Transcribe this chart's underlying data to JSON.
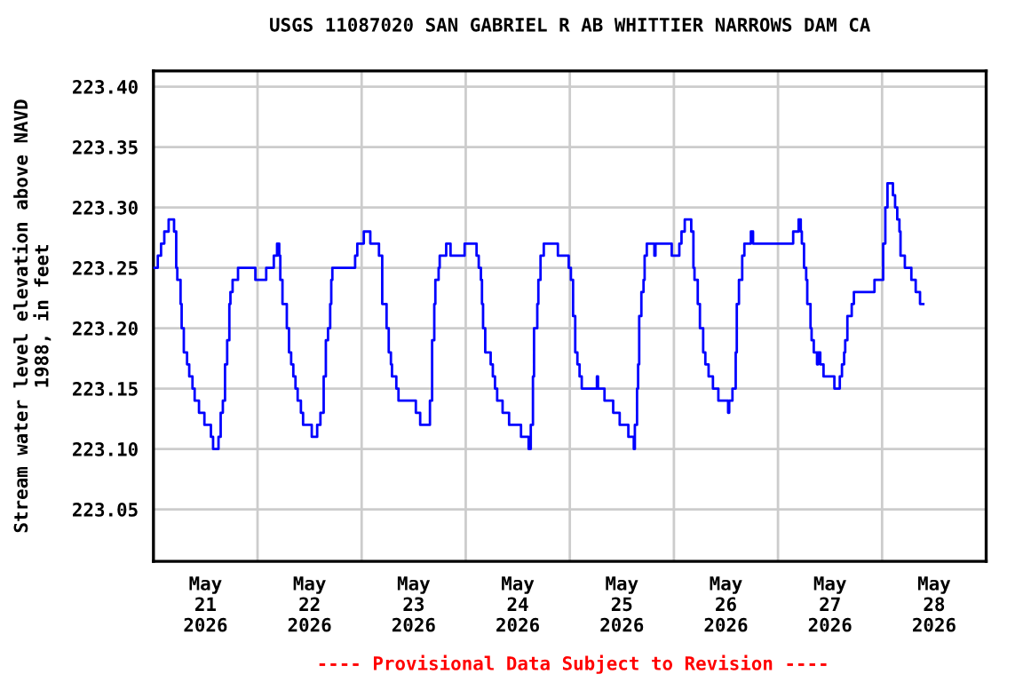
{
  "chart_data": {
    "type": "step",
    "title": "USGS 11087020 SAN GABRIEL R AB WHITTIER NARROWS DAM CA",
    "ylabel": "Stream water level elevation above NAVD\n1988, in feet",
    "annotations": [
      "---- Provisional Data Subject to Revision ----"
    ],
    "x": [
      "2026-05-21T00:00",
      "2026-05-21T01:00",
      "2026-05-21T01:45",
      "2026-05-21T02:30",
      "2026-05-21T03:30",
      "2026-05-21T04:45",
      "2026-05-21T05:15",
      "2026-05-21T05:30",
      "2026-05-21T06:15",
      "2026-05-21T06:30",
      "2026-05-21T07:00",
      "2026-05-21T07:45",
      "2026-05-21T08:15",
      "2026-05-21T09:00",
      "2026-05-21T09:30",
      "2026-05-21T10:30",
      "2026-05-21T11:45",
      "2026-05-21T13:15",
      "2026-05-21T13:45",
      "2026-05-21T15:00",
      "2026-05-21T15:30",
      "2026-05-21T16:00",
      "2026-05-21T16:30",
      "2026-05-21T17:00",
      "2026-05-21T17:30",
      "2026-05-21T17:45",
      "2026-05-21T18:15",
      "2026-05-21T19:30",
      "2026-05-21T23:30",
      "2026-05-22T02:00",
      "2026-05-22T03:45",
      "2026-05-22T04:30",
      "2026-05-22T05:00",
      "2026-05-22T05:15",
      "2026-05-22T05:45",
      "2026-05-22T06:45",
      "2026-05-22T07:15",
      "2026-05-22T07:45",
      "2026-05-22T08:15",
      "2026-05-22T08:45",
      "2026-05-22T09:15",
      "2026-05-22T10:00",
      "2026-05-22T10:30",
      "2026-05-22T12:30",
      "2026-05-22T13:45",
      "2026-05-22T14:30",
      "2026-05-22T15:15",
      "2026-05-22T15:45",
      "2026-05-22T16:15",
      "2026-05-22T16:45",
      "2026-05-22T17:00",
      "2026-05-22T17:15",
      "2026-05-22T22:30",
      "2026-05-22T23:00",
      "2026-05-23T00:30",
      "2026-05-23T02:00",
      "2026-05-23T04:00",
      "2026-05-23T04:45",
      "2026-05-23T05:45",
      "2026-05-23T06:15",
      "2026-05-23T06:45",
      "2026-05-23T07:00",
      "2026-05-23T08:00",
      "2026-05-23T08:30",
      "2026-05-23T12:30",
      "2026-05-23T13:30",
      "2026-05-23T15:45",
      "2026-05-23T16:15",
      "2026-05-23T16:45",
      "2026-05-23T17:00",
      "2026-05-23T17:45",
      "2026-05-23T18:00",
      "2026-05-23T19:30",
      "2026-05-23T20:30",
      "2026-05-23T23:45",
      "2026-05-24T02:30",
      "2026-05-24T03:00",
      "2026-05-24T03:30",
      "2026-05-24T03:45",
      "2026-05-24T04:00",
      "2026-05-24T04:30",
      "2026-05-24T05:45",
      "2026-05-24T06:15",
      "2026-05-24T06:45",
      "2026-05-24T07:15",
      "2026-05-24T08:30",
      "2026-05-24T10:00",
      "2026-05-24T12:45",
      "2026-05-24T14:30",
      "2026-05-24T15:00",
      "2026-05-24T15:30",
      "2026-05-24T15:45",
      "2026-05-24T16:30",
      "2026-05-24T16:45",
      "2026-05-24T17:15",
      "2026-05-24T18:00",
      "2026-05-24T21:15",
      "2026-05-24T23:45",
      "2026-05-25T00:15",
      "2026-05-25T00:45",
      "2026-05-25T01:15",
      "2026-05-25T01:45",
      "2026-05-25T02:15",
      "2026-05-25T02:45",
      "2026-05-25T06:15",
      "2026-05-25T06:30",
      "2026-05-25T08:00",
      "2026-05-25T10:00",
      "2026-05-25T11:30",
      "2026-05-25T13:30",
      "2026-05-25T14:45",
      "2026-05-25T15:00",
      "2026-05-25T15:30",
      "2026-05-25T15:45",
      "2026-05-25T16:00",
      "2026-05-25T16:30",
      "2026-05-25T17:00",
      "2026-05-25T17:15",
      "2026-05-25T17:45",
      "2026-05-25T19:30",
      "2026-05-25T19:45",
      "2026-05-25T23:30",
      "2026-05-26T01:15",
      "2026-05-26T01:45",
      "2026-05-26T02:30",
      "2026-05-26T04:00",
      "2026-05-26T04:30",
      "2026-05-26T04:45",
      "2026-05-26T05:30",
      "2026-05-26T06:00",
      "2026-05-26T06:45",
      "2026-05-26T07:15",
      "2026-05-26T08:00",
      "2026-05-26T09:00",
      "2026-05-26T10:15",
      "2026-05-26T12:30",
      "2026-05-26T12:45",
      "2026-05-26T13:30",
      "2026-05-26T14:15",
      "2026-05-26T14:30",
      "2026-05-26T15:00",
      "2026-05-26T15:45",
      "2026-05-26T16:15",
      "2026-05-26T17:45",
      "2026-05-26T18:15",
      "2026-05-27T03:30",
      "2026-05-27T04:45",
      "2026-05-27T05:15",
      "2026-05-27T05:30",
      "2026-05-27T06:00",
      "2026-05-27T06:30",
      "2026-05-27T06:45",
      "2026-05-27T07:30",
      "2026-05-27T07:45",
      "2026-05-27T08:15",
      "2026-05-27T09:00",
      "2026-05-27T09:15",
      "2026-05-27T09:45",
      "2026-05-27T10:30",
      "2026-05-27T13:00",
      "2026-05-27T14:15",
      "2026-05-27T14:45",
      "2026-05-27T15:15",
      "2026-05-27T15:30",
      "2026-05-27T16:00",
      "2026-05-27T17:00",
      "2026-05-27T17:30",
      "2026-05-27T22:15",
      "2026-05-28T00:15",
      "2026-05-28T00:45",
      "2026-05-28T01:15",
      "2026-05-28T02:30",
      "2026-05-28T03:00",
      "2026-05-28T03:30",
      "2026-05-28T04:00",
      "2026-05-28T04:15",
      "2026-05-28T05:15",
      "2026-05-28T06:45",
      "2026-05-28T07:45",
      "2026-05-28T08:45",
      "2026-05-28T09:30"
    ],
    "series": [
      {
        "color": "#0000ff",
        "values": [
          223.25,
          223.26,
          223.27,
          223.28,
          223.29,
          223.28,
          223.25,
          223.24,
          223.22,
          223.2,
          223.18,
          223.17,
          223.16,
          223.15,
          223.14,
          223.13,
          223.12,
          223.11,
          223.1,
          223.11,
          223.13,
          223.14,
          223.17,
          223.19,
          223.22,
          223.23,
          223.24,
          223.25,
          223.24,
          223.25,
          223.26,
          223.27,
          223.26,
          223.24,
          223.22,
          223.2,
          223.18,
          223.17,
          223.16,
          223.15,
          223.14,
          223.13,
          223.12,
          223.11,
          223.12,
          223.13,
          223.16,
          223.19,
          223.2,
          223.22,
          223.24,
          223.25,
          223.26,
          223.27,
          223.28,
          223.27,
          223.26,
          223.22,
          223.2,
          223.18,
          223.17,
          223.16,
          223.15,
          223.14,
          223.13,
          223.12,
          223.14,
          223.19,
          223.22,
          223.24,
          223.25,
          223.26,
          223.27,
          223.26,
          223.27,
          223.26,
          223.25,
          223.24,
          223.22,
          223.2,
          223.18,
          223.17,
          223.16,
          223.15,
          223.14,
          223.13,
          223.12,
          223.11,
          223.1,
          223.12,
          223.16,
          223.2,
          223.22,
          223.24,
          223.26,
          223.27,
          223.26,
          223.25,
          223.24,
          223.21,
          223.18,
          223.17,
          223.16,
          223.15,
          223.16,
          223.15,
          223.14,
          223.13,
          223.12,
          223.11,
          223.1,
          223.12,
          223.15,
          223.17,
          223.21,
          223.23,
          223.24,
          223.26,
          223.27,
          223.26,
          223.27,
          223.26,
          223.27,
          223.28,
          223.29,
          223.28,
          223.25,
          223.24,
          223.22,
          223.2,
          223.18,
          223.17,
          223.16,
          223.15,
          223.14,
          223.13,
          223.14,
          223.15,
          223.18,
          223.22,
          223.24,
          223.26,
          223.27,
          223.28,
          223.27,
          223.28,
          223.29,
          223.28,
          223.27,
          223.25,
          223.24,
          223.22,
          223.2,
          223.19,
          223.18,
          223.17,
          223.18,
          223.17,
          223.16,
          223.15,
          223.16,
          223.17,
          223.18,
          223.19,
          223.21,
          223.22,
          223.23,
          223.24,
          223.27,
          223.3,
          223.32,
          223.31,
          223.3,
          223.29,
          223.28,
          223.26,
          223.25,
          223.24,
          223.23,
          223.22,
          223.22
        ]
      }
    ],
    "xlim": [
      "2026-05-21T00:00",
      "2026-05-29T00:00"
    ],
    "xticks": [
      {
        "value": "2026-05-21T12:00",
        "label": "May\n21\n2026"
      },
      {
        "value": "2026-05-22T00:00",
        "label": null
      },
      {
        "value": "2026-05-22T12:00",
        "label": "May\n22\n2026"
      },
      {
        "value": "2026-05-23T00:00",
        "label": null
      },
      {
        "value": "2026-05-23T12:00",
        "label": "May\n23\n2026"
      },
      {
        "value": "2026-05-24T00:00",
        "label": null
      },
      {
        "value": "2026-05-24T12:00",
        "label": "May\n24\n2026"
      },
      {
        "value": "2026-05-25T00:00",
        "label": null
      },
      {
        "value": "2026-05-25T12:00",
        "label": "May\n25\n2026"
      },
      {
        "value": "2026-05-26T00:00",
        "label": null
      },
      {
        "value": "2026-05-26T12:00",
        "label": "May\n26\n2026"
      },
      {
        "value": "2026-05-27T00:00",
        "label": null
      },
      {
        "value": "2026-05-27T12:00",
        "label": "May\n27\n2026"
      },
      {
        "value": "2026-05-28T00:00",
        "label": null
      },
      {
        "value": "2026-05-28T12:00",
        "label": "May\n28\n2026"
      }
    ],
    "ylim": [
      223.007,
      223.413
    ],
    "yticks": [
      {
        "value": 223.05,
        "label": "223.05"
      },
      {
        "value": 223.1,
        "label": "223.10"
      },
      {
        "value": 223.15,
        "label": "223.15"
      },
      {
        "value": 223.2,
        "label": "223.20"
      },
      {
        "value": 223.25,
        "label": "223.25"
      },
      {
        "value": 223.3,
        "label": "223.30"
      },
      {
        "value": 223.35,
        "label": "223.35"
      },
      {
        "value": 223.4,
        "label": "223.40"
      }
    ],
    "grid": true,
    "line_style": "solid",
    "marker": "none"
  }
}
